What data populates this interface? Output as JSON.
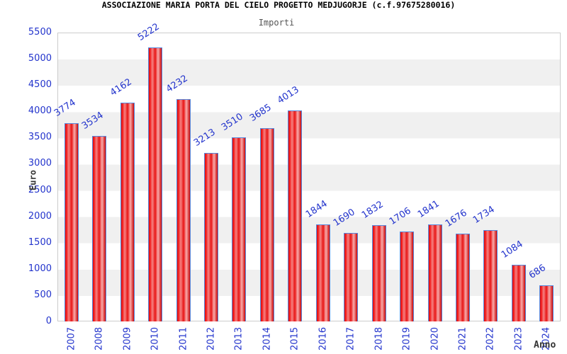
{
  "header": {
    "title": "ASSOCIAZIONE MARIA PORTA DEL CIELO PROGETTO MEDJUGORJE (c.f.97675280016)",
    "subtitle": "Importi"
  },
  "chart_data": {
    "type": "bar",
    "title": "ASSOCIAZIONE MARIA PORTA DEL CIELO PROGETTO MEDJUGORJE (c.f.97675280016)",
    "subtitle": "Importi",
    "xlabel": "Anno",
    "ylabel": "Euro",
    "categories": [
      "2007",
      "2008",
      "2009",
      "2010",
      "2011",
      "2012",
      "2013",
      "2014",
      "2015",
      "2016",
      "2017",
      "2018",
      "2019",
      "2020",
      "2021",
      "2022",
      "2023",
      "2024"
    ],
    "values": [
      3774,
      3534,
      4162,
      5222,
      4232,
      3213,
      3510,
      3685,
      4013,
      1844,
      1690,
      1832,
      1706,
      1841,
      1676,
      1734,
      1084,
      686
    ],
    "ylim": [
      0,
      5500
    ],
    "ytick_step": 500,
    "grid": "alternating-horizontal-bands",
    "legend_position": "none",
    "colors": {
      "bar_fill_gradient": [
        "#dd1111",
        "#f31c1c",
        "#f58282",
        "#e81414",
        "#f9acac",
        "#cc0606"
      ],
      "bar_border": "#5588dd",
      "tick_text": "#2233cc",
      "value_label_text": "#2233cc",
      "band_white": "#ffffff",
      "band_gray": "#f0f0f0",
      "plot_border": "#cccccc",
      "title_text": "#000000",
      "subtitle_text": "#555555",
      "axis_title_text": "#333333"
    }
  }
}
